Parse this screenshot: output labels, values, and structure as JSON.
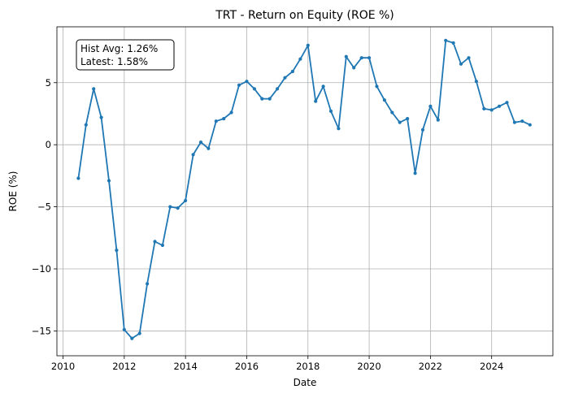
{
  "chart_data": {
    "type": "line",
    "title": "TRT - Return on Equity (ROE %)",
    "xlabel": "Date",
    "ylabel": "ROE (%)",
    "xlim": [
      2009.8,
      2026.0
    ],
    "ylim": [
      -17.0,
      9.5
    ],
    "x_ticks": [
      2010,
      2012,
      2014,
      2016,
      2018,
      2020,
      2022,
      2024
    ],
    "y_ticks": [
      -15,
      -10,
      -5,
      0,
      5
    ],
    "grid": true,
    "line_color": "#1f77b4",
    "annotation": {
      "line1": "Hist Avg: 1.26%",
      "line2": "Latest: 1.58%"
    },
    "series": [
      {
        "x": [
          "2010-07",
          "2010-10",
          "2011-01",
          "2011-04",
          "2011-07",
          "2011-10",
          "2012-01",
          "2012-04",
          "2012-07",
          "2012-10",
          "2013-01",
          "2013-04",
          "2013-07",
          "2013-10",
          "2014-01",
          "2014-04",
          "2014-07",
          "2014-10",
          "2015-01",
          "2015-04",
          "2015-07",
          "2015-10",
          "2016-01",
          "2016-04",
          "2016-07",
          "2016-10",
          "2017-01",
          "2017-04",
          "2017-07",
          "2017-10",
          "2018-01",
          "2018-04",
          "2018-07",
          "2018-10",
          "2019-01",
          "2019-04",
          "2019-07",
          "2019-10",
          "2020-01",
          "2020-04",
          "2020-07",
          "2020-10",
          "2021-01",
          "2021-04",
          "2021-07",
          "2021-10",
          "2022-01",
          "2022-04",
          "2022-07",
          "2022-10",
          "2023-01",
          "2023-04",
          "2023-07",
          "2023-10",
          "2024-01",
          "2024-04",
          "2024-07",
          "2024-10",
          "2025-01",
          "2025-04"
        ],
        "values": [
          -2.7,
          1.6,
          4.5,
          2.2,
          -2.9,
          -8.5,
          -14.9,
          -15.6,
          -15.2,
          -11.2,
          -7.8,
          -8.1,
          -5.0,
          -5.1,
          -4.5,
          -0.8,
          0.2,
          -0.3,
          1.9,
          2.1,
          2.6,
          4.8,
          5.1,
          4.5,
          3.7,
          3.7,
          4.5,
          5.4,
          5.9,
          6.9,
          8.0,
          3.5,
          4.7,
          2.7,
          1.3,
          7.1,
          6.2,
          7.0,
          7.0,
          4.7,
          3.6,
          2.6,
          1.8,
          2.1,
          -2.3,
          1.2,
          3.1,
          2.0,
          8.4,
          8.2,
          6.5,
          7.0,
          5.1,
          2.9,
          2.8,
          3.1,
          3.4,
          1.8,
          1.9,
          1.6
        ]
      }
    ]
  }
}
